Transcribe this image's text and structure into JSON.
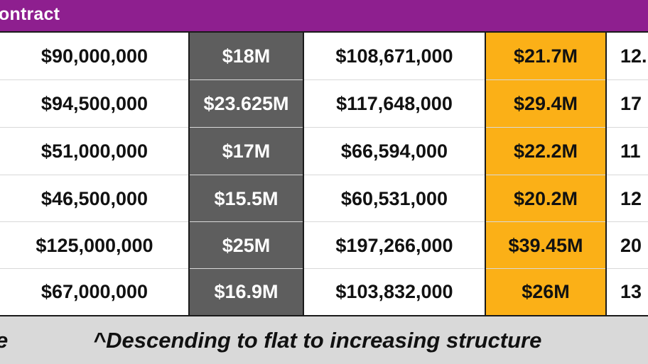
{
  "header": {
    "title": "ontract"
  },
  "rows": [
    {
      "col1": "$90,000,000",
      "col2": "$18M",
      "col3": "$108,671,000",
      "col4": "$21.7M",
      "col5": "12."
    },
    {
      "col1": "$94,500,000",
      "col2": "$23.625M",
      "col3": "$117,648,000",
      "col4": "$29.4M",
      "col5": "17"
    },
    {
      "col1": "$51,000,000",
      "col2": "$17M",
      "col3": "$66,594,000",
      "col4": "$22.2M",
      "col5": "11"
    },
    {
      "col1": "$46,500,000",
      "col2": "$15.5M",
      "col3": "$60,531,000",
      "col4": "$20.2M",
      "col5": "12"
    },
    {
      "col1": "$125,000,000",
      "col2": "$25M",
      "col3": "$197,266,000",
      "col4": "$39.45M",
      "col5": "20"
    },
    {
      "col1": "$67,000,000",
      "col2": "$16.9M",
      "col3": "$103,832,000",
      "col4": "$26M",
      "col5": "13"
    }
  ],
  "footer": {
    "left_fragment": "e",
    "note": "^Descending to flat to increasing structure"
  },
  "colors": {
    "header": "#8e1f8f",
    "gray_column": "#5e5e5e",
    "orange_column": "#fbb017",
    "footer": "#d9d9d9"
  }
}
